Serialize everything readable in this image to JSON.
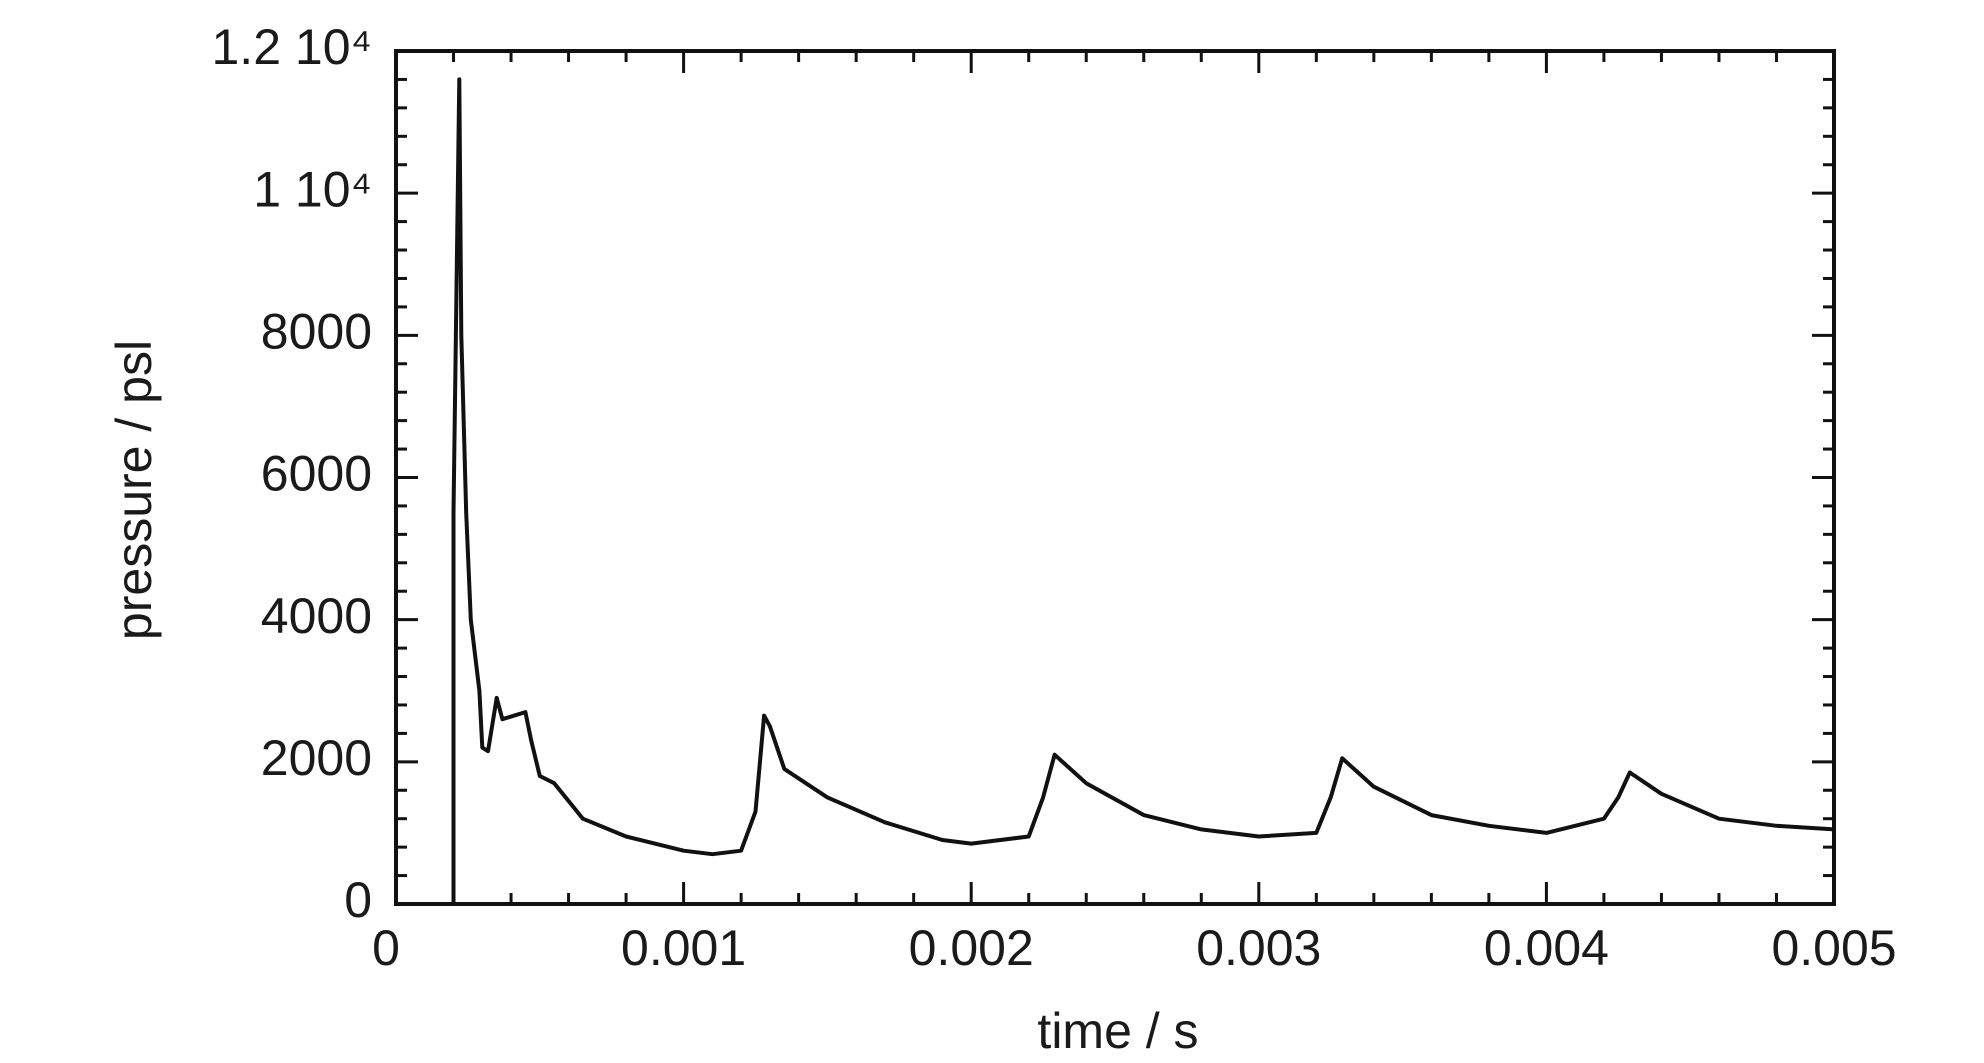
{
  "chart_data": {
    "type": "line",
    "x_label": "time / s",
    "y_label": "pressure / psl",
    "xlim": [
      0,
      0.005
    ],
    "ylim": [
      0,
      12000
    ],
    "xticks": [
      0,
      0.001,
      0.002,
      0.003,
      0.004,
      0.005
    ],
    "yticks": [
      0,
      2000,
      4000,
      6000,
      8000,
      {
        "value": 10000,
        "label": "1 10⁴"
      },
      {
        "value": 12000,
        "label": "1.2 10⁴"
      }
    ],
    "grid": false,
    "series": [
      {
        "color": "#111111",
        "x": [
          0.0002,
          0.0002,
          0.00022,
          0.000227,
          0.000244,
          0.00026,
          0.00029,
          0.0003,
          0.00032,
          0.00035,
          0.00037,
          0.00045,
          0.00047,
          0.0005,
          0.00055,
          0.00065,
          0.0008,
          0.001,
          0.0011,
          0.0012,
          0.00125,
          0.00128,
          0.0013,
          0.00135,
          0.0015,
          0.0017,
          0.0019,
          0.002,
          0.0022,
          0.00225,
          0.00229,
          0.0024,
          0.0026,
          0.0028,
          0.003,
          0.0032,
          0.00325,
          0.00329,
          0.0034,
          0.0036,
          0.0038,
          0.004,
          0.0042,
          0.00425,
          0.00429,
          0.0044,
          0.0046,
          0.0048,
          0.005
        ],
        "values": [
          0,
          5500,
          11600,
          8000,
          5500,
          4000,
          3000,
          2200,
          2150,
          2900,
          2600,
          2700,
          2300,
          1800,
          1700,
          1200,
          950,
          750,
          700,
          750,
          1300,
          2650,
          2500,
          1900,
          1500,
          1150,
          900,
          850,
          950,
          1500,
          2100,
          1700,
          1250,
          1050,
          950,
          1000,
          1500,
          2050,
          1650,
          1250,
          1100,
          1000,
          1200,
          1500,
          1850,
          1550,
          1200,
          1100,
          1050
        ]
      }
    ]
  }
}
